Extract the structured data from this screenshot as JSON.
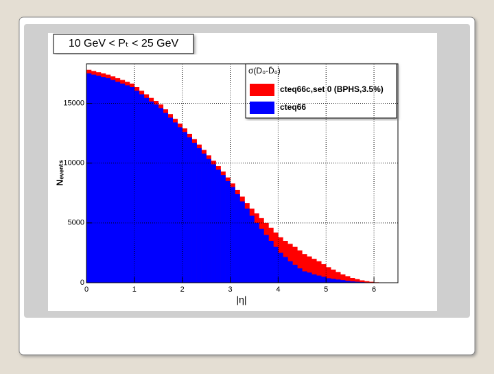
{
  "chart_data": {
    "type": "histogram",
    "title": "10 GeV < Pₜ < 25 GeV",
    "x_label": "|η|",
    "y_label": "Nₑᵥₑₙₜₛ",
    "legend_title": "σ(D₀-D̄₀)",
    "legend": "top-right",
    "grid": true,
    "xlim": [
      0,
      6.5
    ],
    "ylim": [
      0,
      18300
    ],
    "xticks": [
      0,
      1,
      2,
      3,
      4,
      5,
      6
    ],
    "yticks": [
      0,
      5000,
      10000,
      15000
    ],
    "bins": [
      0,
      0.1,
      0.2,
      0.3,
      0.4,
      0.5,
      0.6,
      0.7,
      0.8,
      0.9,
      1,
      1.1,
      1.2,
      1.3,
      1.4,
      1.5,
      1.6,
      1.7,
      1.8,
      1.9,
      2,
      2.1,
      2.2,
      2.3,
      2.4,
      2.5,
      2.6,
      2.7,
      2.8,
      2.9,
      3,
      3.1,
      3.2,
      3.3,
      3.4,
      3.5,
      3.6,
      3.7,
      3.8,
      3.9,
      4,
      4.1,
      4.2,
      4.3,
      4.4,
      4.5,
      4.6,
      4.7,
      4.8,
      4.9,
      5,
      5.1,
      5.2,
      5.3,
      5.4,
      5.5,
      5.6,
      5.7,
      5.8,
      5.9,
      6,
      6.1,
      6.2,
      6.3,
      6.4,
      6.5
    ],
    "series": [
      {
        "name": "cteq66c,set 0 (BPHS,3.5%)",
        "color": "#ff0000",
        "values": [
          17800,
          17700,
          17600,
          17500,
          17400,
          17250,
          17100,
          16950,
          16800,
          16650,
          16350,
          16050,
          15750,
          15450,
          15200,
          14900,
          14500,
          14100,
          13700,
          13300,
          12900,
          12450,
          12000,
          11550,
          11100,
          10650,
          10200,
          9750,
          9300,
          8800,
          8300,
          7750,
          7200,
          6650,
          6200,
          5800,
          5400,
          5000,
          4600,
          4200,
          3800,
          3500,
          3250,
          3000,
          2700,
          2400,
          2200,
          2000,
          1800,
          1550,
          1300,
          1100,
          900,
          700,
          550,
          400,
          300,
          200,
          130,
          80,
          40,
          15,
          0,
          0,
          0
        ]
      },
      {
        "name": "cteq66",
        "color": "#0000ff",
        "values": [
          17500,
          17400,
          17300,
          17200,
          17100,
          16950,
          16800,
          16650,
          16500,
          16350,
          16050,
          15750,
          15450,
          15150,
          14900,
          14600,
          14200,
          13800,
          13400,
          13000,
          12600,
          12150,
          11700,
          11250,
          10800,
          10350,
          9900,
          9450,
          9000,
          8500,
          8000,
          7400,
          6800,
          6200,
          5600,
          5000,
          4500,
          4000,
          3500,
          3000,
          2500,
          2150,
          1800,
          1500,
          1200,
          950,
          850,
          700,
          600,
          500,
          380,
          330,
          270,
          220,
          160,
          110,
          80,
          50,
          30,
          15,
          0,
          0,
          0,
          0,
          0
        ]
      }
    ]
  }
}
